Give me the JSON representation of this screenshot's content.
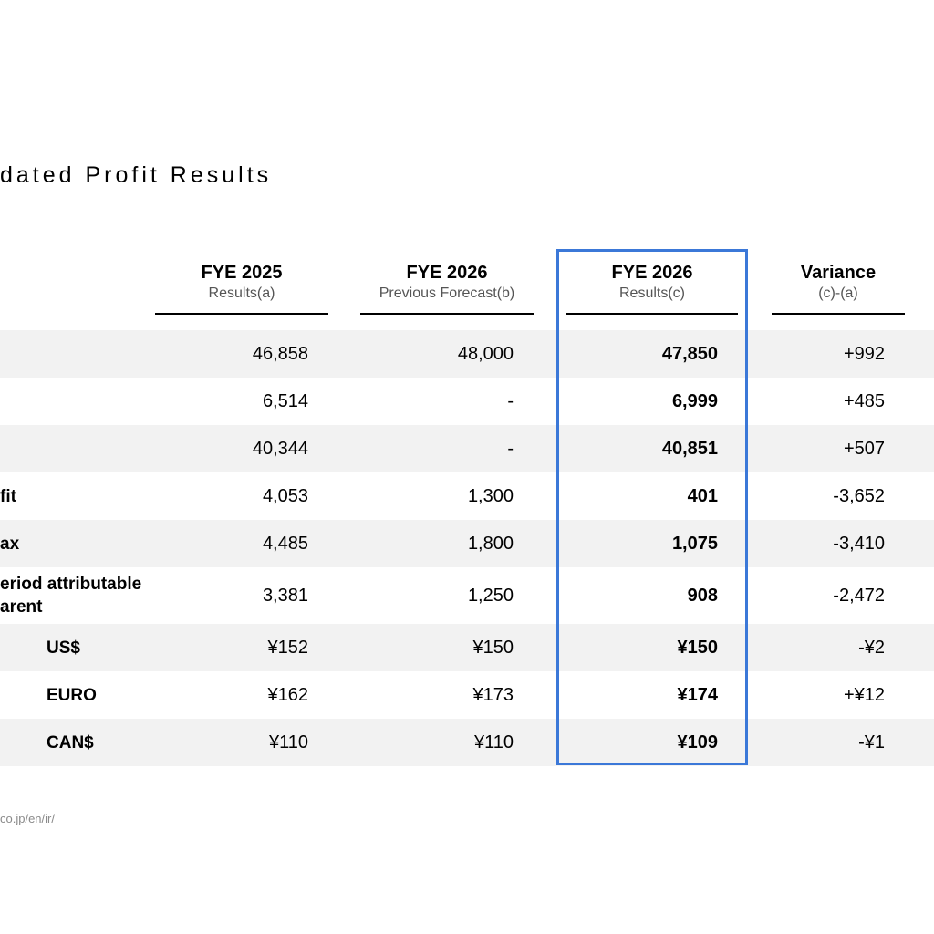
{
  "title": "dated Profit Results",
  "columns": [
    {
      "title": "FYE 2025",
      "subtitle": "Results(a)"
    },
    {
      "title": "FYE 2026",
      "subtitle": "Previous Forecast(b)"
    },
    {
      "title": "FYE 2026",
      "subtitle": "Results(c)"
    },
    {
      "title": "Variance",
      "subtitle": "(c)-(a)"
    }
  ],
  "rows": [
    {
      "label": "",
      "values": [
        "46,858",
        "48,000",
        "47,850",
        "+992"
      ]
    },
    {
      "label": "",
      "values": [
        "6,514",
        "-",
        "6,999",
        "+485"
      ]
    },
    {
      "label": "",
      "values": [
        "40,344",
        "-",
        "40,851",
        "+507"
      ]
    },
    {
      "label": "fit",
      "values": [
        "4,053",
        "1,300",
        "401",
        "-3,652"
      ]
    },
    {
      "label": "ax",
      "values": [
        "4,485",
        "1,800",
        "1,075",
        "-3,410"
      ]
    },
    {
      "label": "eriod attributable",
      "label2": "arent",
      "values": [
        "3,381",
        "1,250",
        "908",
        "-2,472"
      ]
    },
    {
      "label": "US$",
      "values": [
        "¥152",
        "¥150",
        "¥150",
        "-¥2"
      ]
    },
    {
      "label": "EURO",
      "values": [
        "¥162",
        "¥173",
        "¥174",
        "+¥12"
      ]
    },
    {
      "label": "CAN$",
      "values": [
        "¥110",
        "¥110",
        "¥109",
        "-¥1"
      ]
    }
  ],
  "footer": "co.jp/en/ir/",
  "colors": {
    "highlight": "#3b78d8",
    "shade": "#f2f2f2"
  }
}
